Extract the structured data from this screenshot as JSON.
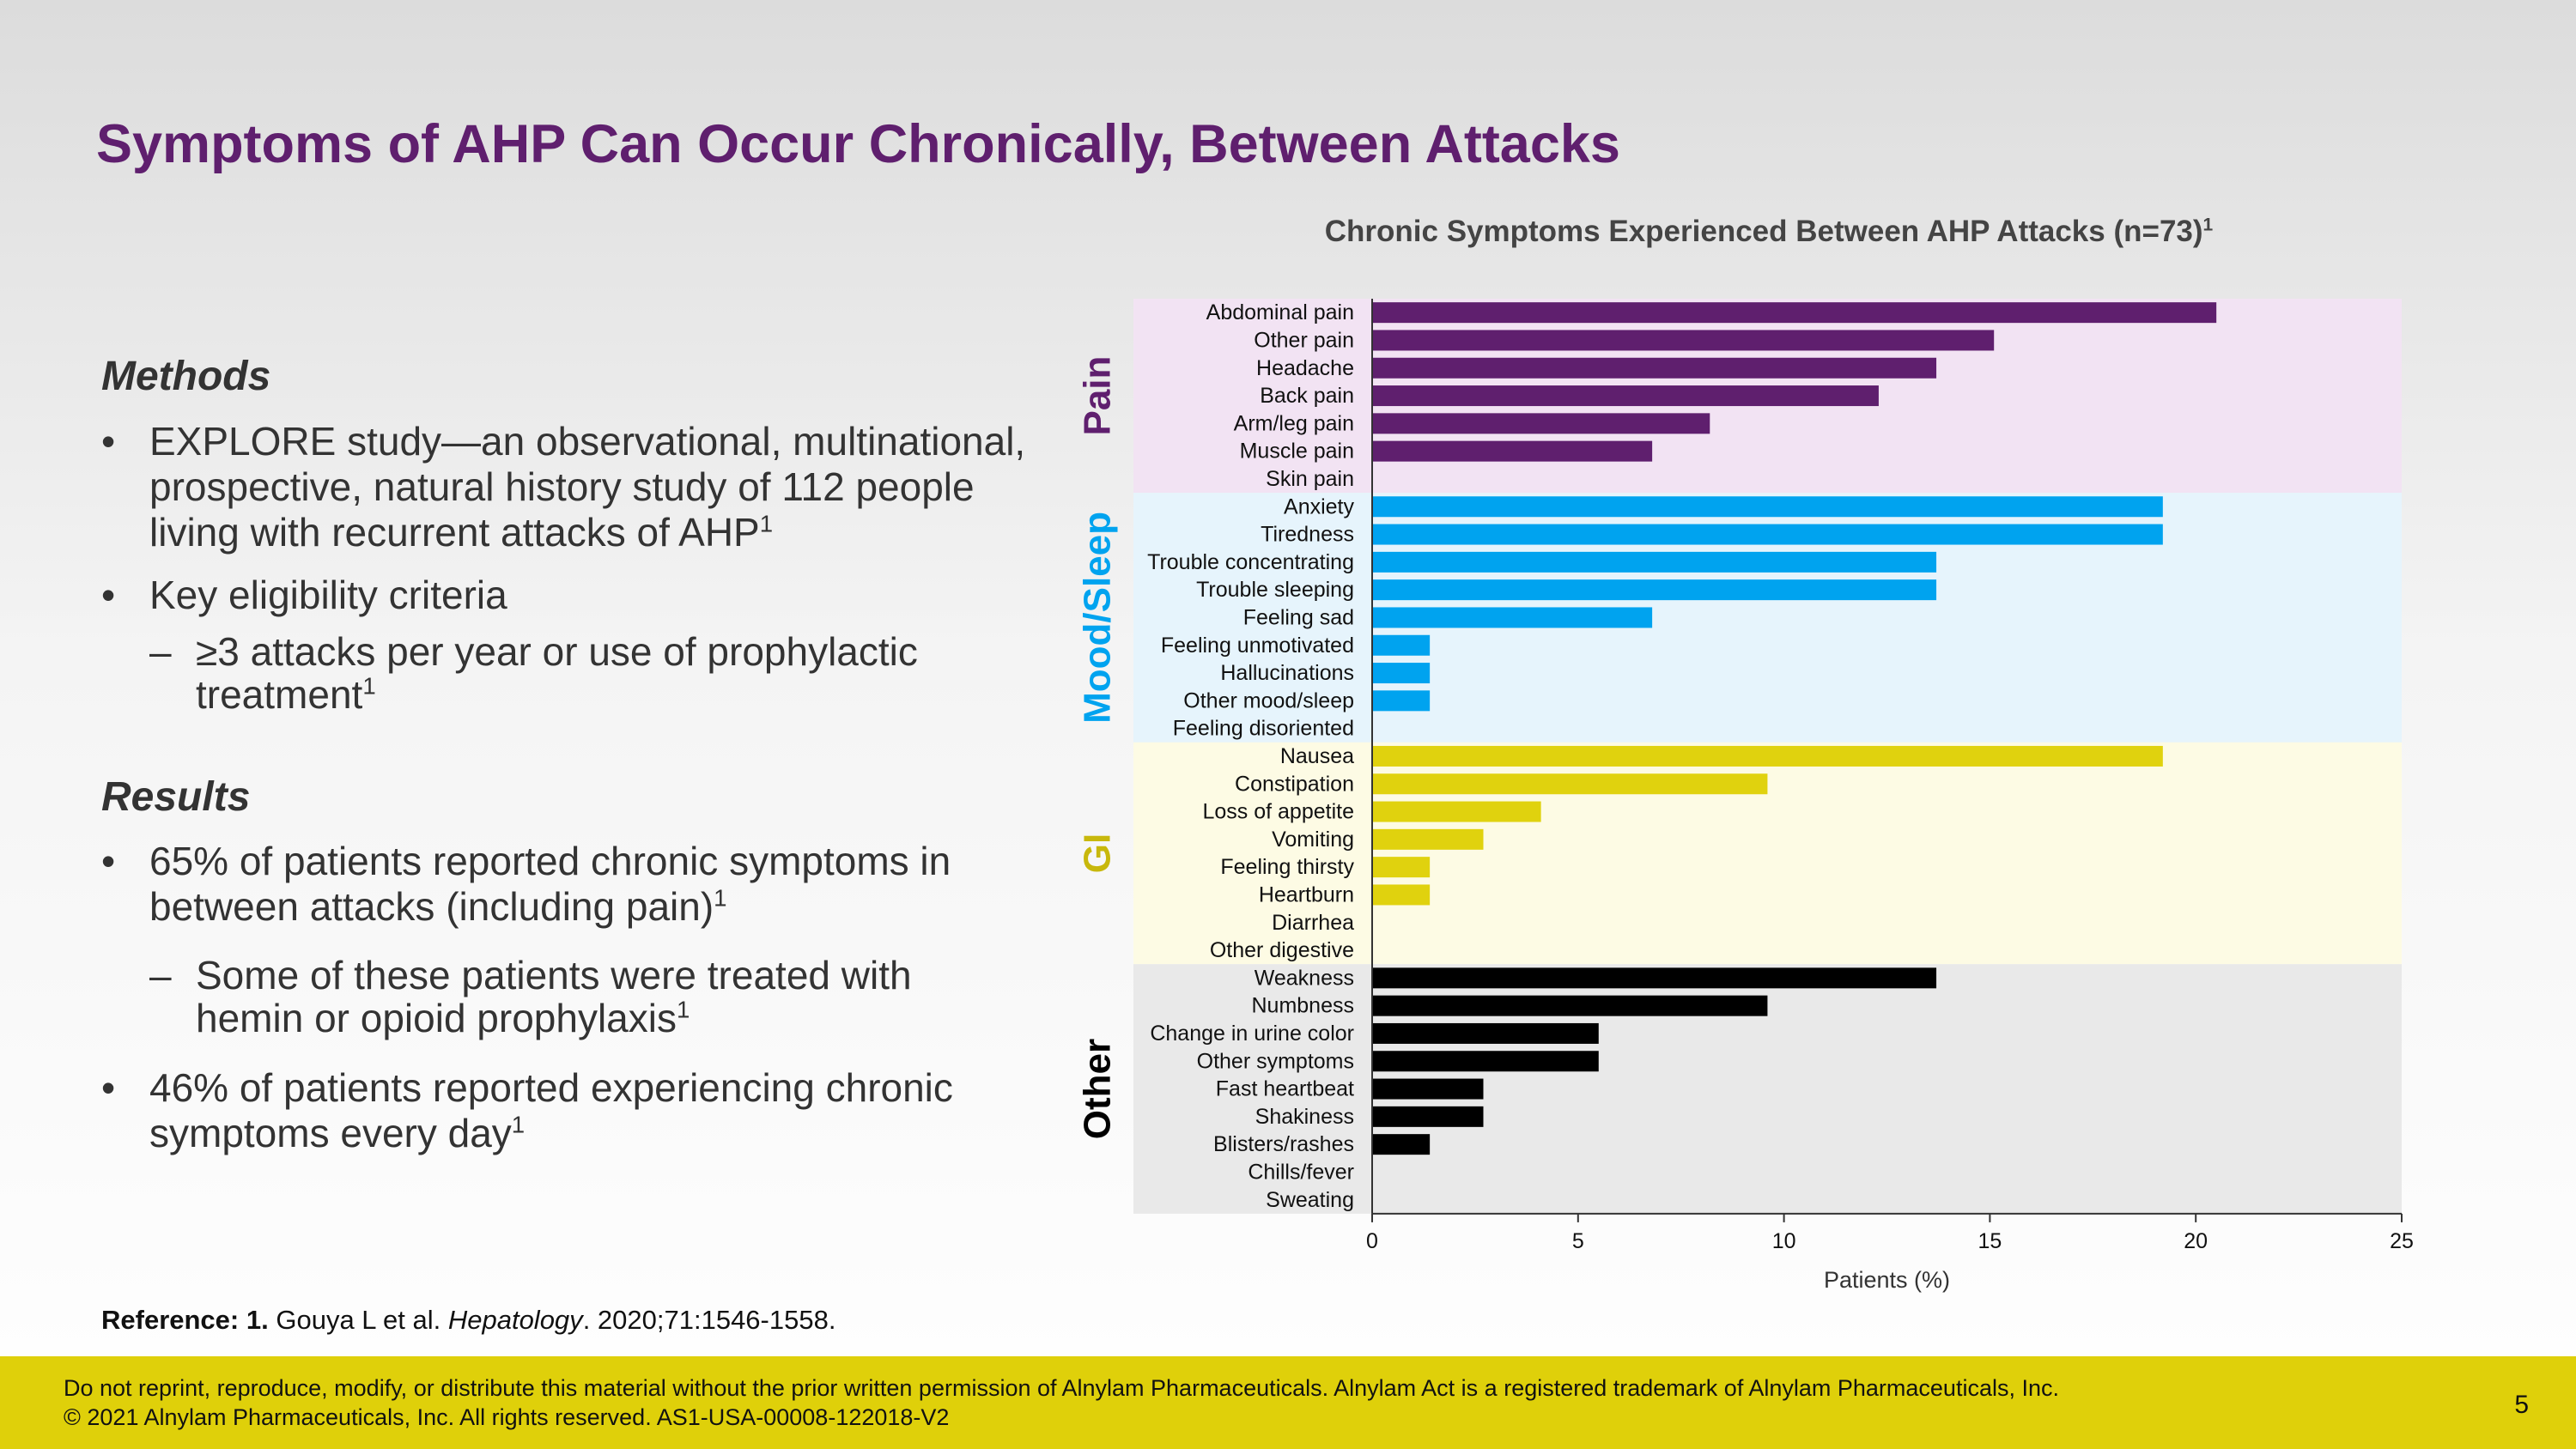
{
  "slide": {
    "title": "Symptoms of AHP Can Occur Chronically, Between Attacks",
    "page_number": "5"
  },
  "methods": {
    "heading": "Methods",
    "bullet1": "EXPLORE study—an observational, multinational, prospective, natural history study of 112 people living with recurrent attacks of AHP",
    "bullet1_sup": "1",
    "bullet2": "Key eligibility criteria",
    "sub1": "≥3 attacks per year or use of prophylactic treatment",
    "sub1_sup": "1"
  },
  "results": {
    "heading": "Results",
    "bullet1": "65% of patients reported chronic symptoms in between attacks (including pain)",
    "bullet1_sup": "1",
    "sub1": "Some of these patients were treated with hemin or opioid prophylaxis",
    "sub1_sup": "1",
    "bullet2": "46% of patients reported experiencing chronic symptoms every day",
    "bullet2_sup": "1"
  },
  "reference": {
    "label": "Reference:",
    "number": "1.",
    "authors": "Gouya L et al.",
    "journal": "Hepatology",
    "details": ". 2020;71:1546-1558."
  },
  "footer": {
    "line1": "Do not reprint, reproduce, modify, or distribute this material without the prior written permission of Alnylam Pharmaceuticals. Alnylam Act is a registered trademark of Alnylam Pharmaceuticals, Inc.",
    "line2": "© 2021 Alnylam Pharmaceuticals, Inc. All rights reserved. AS1-USA-00008-122018-V2",
    "color": "#dfd00a"
  },
  "chart_data": {
    "type": "bar",
    "orientation": "horizontal",
    "title": "Chronic Symptoms Experienced Between AHP Attacks (n=73)",
    "title_sup": "1",
    "xlabel": "Patients (%)",
    "xlim": [
      0,
      25
    ],
    "xticks": [
      0,
      5,
      10,
      15,
      20,
      25
    ],
    "grid": false,
    "groups": [
      {
        "name": "Pain",
        "bar_color": "#5f1f6e",
        "bg_color": "#f2e3f3",
        "label_color": "#5f1f6e",
        "categories": [
          "Abdominal pain",
          "Other pain",
          "Headache",
          "Back pain",
          "Arm/leg pain",
          "Muscle pain",
          "Skin pain"
        ],
        "values": [
          20.5,
          15.1,
          13.7,
          12.3,
          8.2,
          6.8,
          0
        ]
      },
      {
        "name": "Mood/Sleep",
        "bar_color": "#00a3ef",
        "bg_color": "#e6f4fc",
        "label_color": "#00a3ef",
        "categories": [
          "Anxiety",
          "Tiredness",
          "Trouble concentrating",
          "Trouble sleeping",
          "Feeling sad",
          "Feeling unmotivated",
          "Hallucinations",
          "Other mood/sleep",
          "Feeling disoriented"
        ],
        "values": [
          19.2,
          19.2,
          13.7,
          13.7,
          6.8,
          1.4,
          1.4,
          1.4,
          0
        ]
      },
      {
        "name": "GI",
        "bar_color": "#e0d20e",
        "bg_color": "#fdfbe4",
        "label_color": "#c8b80c",
        "categories": [
          "Nausea",
          "Constipation",
          "Loss of appetite",
          "Vomiting",
          "Feeling thirsty",
          "Heartburn",
          "Diarrhea",
          "Other digestive"
        ],
        "values": [
          19.2,
          9.6,
          4.1,
          2.7,
          1.4,
          1.4,
          0,
          0
        ]
      },
      {
        "name": "Other",
        "bar_color": "#000000",
        "bg_color": "#e9e9e9",
        "label_color": "#000000",
        "categories": [
          "Weakness",
          "Numbness",
          "Change in urine color",
          "Other symptoms",
          "Fast heartbeat",
          "Shakiness",
          "Blisters/rashes",
          "Chills/fever",
          "Sweating"
        ],
        "values": [
          13.7,
          9.6,
          5.5,
          5.5,
          2.7,
          2.7,
          1.4,
          0,
          0
        ]
      }
    ]
  }
}
